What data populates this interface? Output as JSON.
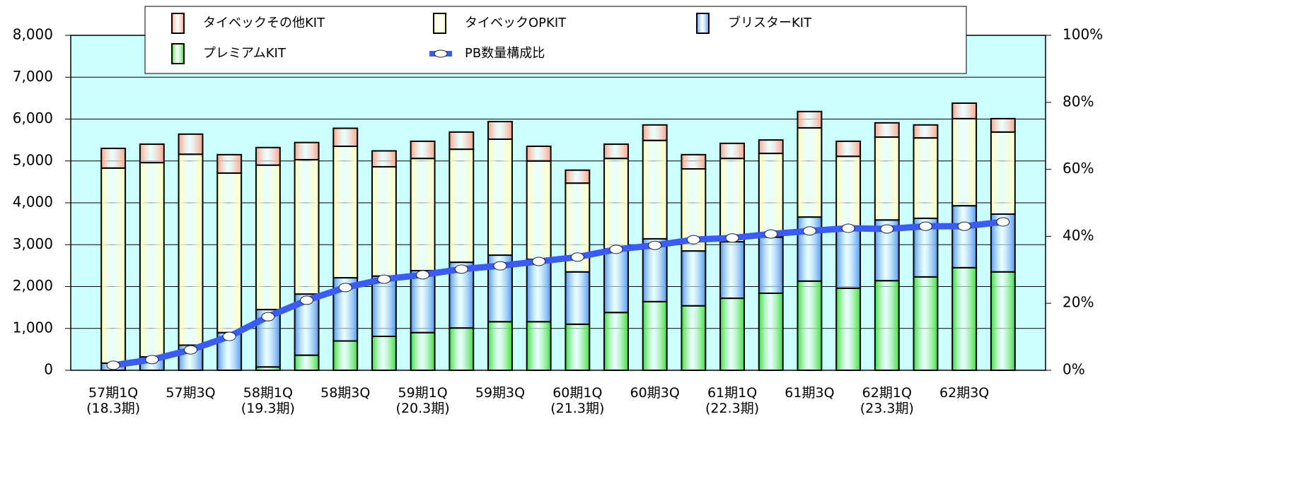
{
  "chart_data": {
    "type": "bar",
    "categories": [
      "57期1Q\n(18.3期)",
      null,
      "57期3Q",
      null,
      "58期1Q\n(19.3期)",
      null,
      "58期3Q",
      null,
      "59期1Q\n(20.3期)",
      null,
      "59期3Q",
      null,
      "60期1Q\n(21.3期)",
      null,
      "60期3Q",
      null,
      "61期1Q\n(22.3期)",
      null,
      "61期3Q",
      null,
      "62期1Q\n(23.3期)",
      null,
      "62期3Q",
      null
    ],
    "series": [
      {
        "name": "タイベックその他KIT",
        "color": "#f8a488",
        "values": [
          470,
          440,
          480,
          440,
          420,
          410,
          430,
          380,
          410,
          410,
          420,
          350,
          310,
          340,
          370,
          340,
          360,
          320,
          390,
          360,
          340,
          310,
          370,
          320
        ]
      },
      {
        "name": "タイベックOPKIT",
        "color": "#ffffb8",
        "values": [
          4660,
          4640,
          4560,
          3810,
          3450,
          3210,
          3140,
          2610,
          2680,
          2700,
          2770,
          2350,
          2120,
          2160,
          2350,
          1960,
          1990,
          2000,
          2130,
          1710,
          1980,
          1920,
          2080,
          1960
        ]
      },
      {
        "name": "ブリスターKIT",
        "color": "#4f98ee",
        "values": [
          170,
          320,
          600,
          900,
          1370,
          1460,
          1510,
          1440,
          1480,
          1570,
          1590,
          1490,
          1250,
          1520,
          1500,
          1310,
          1350,
          1340,
          1530,
          1440,
          1450,
          1400,
          1480,
          1380
        ]
      },
      {
        "name": "プレミアムKIT",
        "color": "#3cdc3c",
        "values": [
          0,
          0,
          0,
          0,
          80,
          360,
          700,
          810,
          900,
          1010,
          1160,
          1160,
          1100,
          1380,
          1640,
          1540,
          1720,
          1840,
          2130,
          1960,
          2140,
          2230,
          2450,
          2350
        ]
      },
      {
        "name": "PB数量構成比",
        "color": "#3a5cf0",
        "type": "line",
        "axis": "y2",
        "values": [
          1.5,
          3.2,
          6.1,
          10.1,
          16.0,
          20.9,
          24.7,
          27.2,
          28.5,
          30.2,
          31.2,
          32.5,
          33.8,
          36.1,
          37.3,
          39.0,
          39.5,
          40.7,
          41.6,
          42.4,
          42.2,
          43.0,
          43.0,
          44.3
        ]
      }
    ],
    "stacked": true,
    "background": "#ccffff",
    "grid": true,
    "ylim": [
      0,
      8000
    ],
    "yticks": [
      0,
      {
        "value": 1000,
        "label": "1,000"
      },
      {
        "value": 2000,
        "label": "2,000"
      },
      {
        "value": 3000,
        "label": "3,000"
      },
      {
        "value": 4000,
        "label": "4,000"
      },
      {
        "value": 5000,
        "label": "5,000"
      },
      {
        "value": 6000,
        "label": "6,000"
      },
      {
        "value": 7000,
        "label": "7,000"
      },
      {
        "value": 8000,
        "label": "8,000"
      }
    ],
    "y2lim": [
      0,
      100
    ],
    "y2ticks": [
      {
        "value": 0,
        "label": "0%"
      },
      {
        "value": 20,
        "label": "20%"
      },
      {
        "value": 40,
        "label": "40%"
      },
      {
        "value": 60,
        "label": "60%"
      },
      {
        "value": 80,
        "label": "80%"
      },
      {
        "value": 100,
        "label": "100%"
      }
    ]
  }
}
